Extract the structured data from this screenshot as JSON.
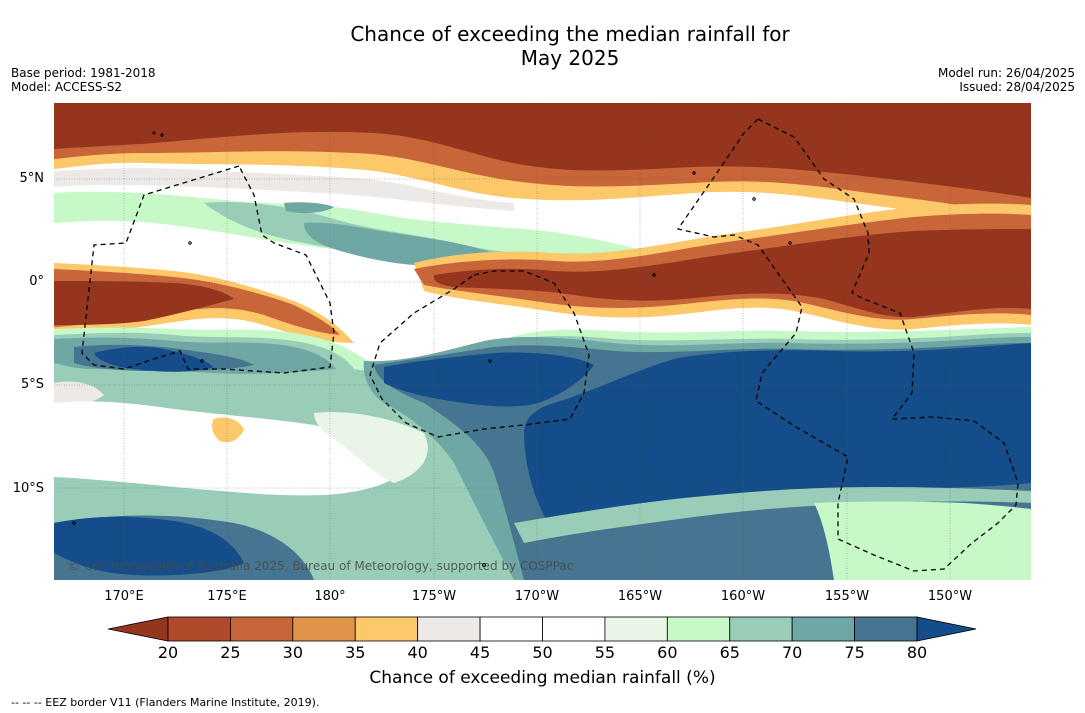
{
  "title": {
    "line1": "Chance of exceeding the median rainfall for",
    "line2": "May 2025"
  },
  "meta": {
    "base_period": "Base period: 1981-2018",
    "model": "Model: ACCESS-S2",
    "model_run": "Model run: 26/04/2025",
    "issued": "Issued: 28/04/2025"
  },
  "copyright": "© Commonwealth of Australia 2025, Bureau of Meteorology, supported by COSPPac",
  "footnote": "--  --  -- EEZ border V11 (Flanders Marine Institute, 2019).",
  "lat_labels": [
    "5°N",
    "0°",
    "5°S",
    "10°S"
  ],
  "lon_labels": [
    "170°E",
    "175°E",
    "180°",
    "175°W",
    "170°W",
    "165°W",
    "160°W",
    "155°W",
    "150°W"
  ],
  "colorbar": {
    "label": "Chance of exceeding median rainfall (%)",
    "ticks": [
      "20",
      "25",
      "30",
      "35",
      "40",
      "45",
      "50",
      "55",
      "60",
      "65",
      "70",
      "75",
      "80"
    ],
    "colors": [
      "#b14a2a",
      "#c8663a",
      "#e0944a",
      "#fdc86a",
      "#ede9e6",
      "#ffffff",
      "#ffffff",
      "#e9f5e6",
      "#c7f9c8",
      "#99cdb7",
      "#6fa7a4",
      "#457590"
    ],
    "under_color": "#96351e",
    "over_color": "#144d8a"
  },
  "map_colors": {
    "p20": "#96351e",
    "p25": "#b14a2a",
    "p30": "#c8663a",
    "p35": "#e0944a",
    "p40": "#fdc86a",
    "p45": "#ede9e6",
    "p55": "#e9f5e6",
    "p60": "#c7f9c8",
    "p65": "#99cdb7",
    "p70": "#6fa7a4",
    "p75": "#457590",
    "p80": "#144d8a"
  }
}
